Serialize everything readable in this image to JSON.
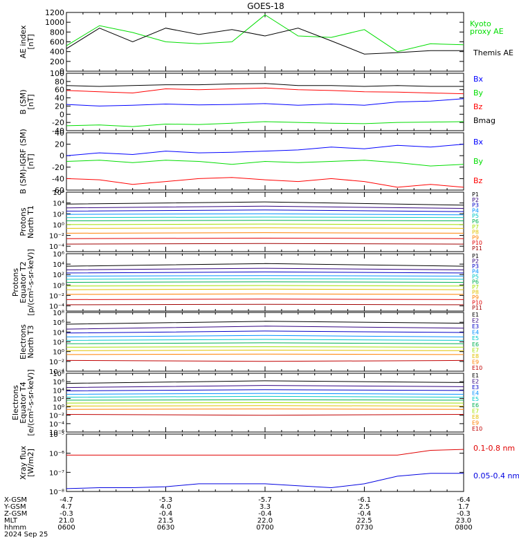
{
  "title": "GOES-18",
  "date_label": "2024 Sep 25",
  "footer": {
    "row_labels": [
      "X-GSM",
      "Y-GSM",
      "Z-GSM",
      "MLT",
      "hhmm"
    ],
    "columns": [
      [
        "-4.7",
        "4.7",
        "-0.3",
        "21.0",
        "0600"
      ],
      [
        "-5.3",
        "4.0",
        "-0.4",
        "21.5",
        "0630"
      ],
      [
        "-5.7",
        "3.3",
        "-0.4",
        "22.0",
        "0700"
      ],
      [
        "-6.1",
        "2.5",
        "-0.4",
        "22.5",
        "0730"
      ],
      [
        "-6.4",
        "1.7",
        "-0.3",
        "23.0",
        "0800"
      ]
    ]
  },
  "chart_data": [
    {
      "type": "line",
      "ylabel": [
        "AE index",
        "[nT]"
      ],
      "ylim": [
        0,
        1200
      ],
      "yticks": [
        "0",
        "200",
        "400",
        "600",
        "800",
        "1000",
        "1200"
      ],
      "x": [
        "0600",
        "0610",
        "0620",
        "0630",
        "0640",
        "0650",
        "0700",
        "0710",
        "0720",
        "0730",
        "0740",
        "0750",
        "0800"
      ],
      "series": [
        {
          "name": "Kyoto proxy AE",
          "color": "#00dd00",
          "legend_lines": [
            "Kyoto",
            "proxy AE"
          ],
          "values": [
            520,
            930,
            790,
            600,
            560,
            600,
            1150,
            720,
            690,
            850,
            400,
            560,
            540
          ]
        },
        {
          "name": "Themis AE",
          "color": "#000000",
          "values": [
            460,
            880,
            600,
            880,
            750,
            850,
            720,
            880,
            620,
            350,
            380,
            420,
            420
          ]
        }
      ]
    },
    {
      "type": "line",
      "ylabel": [
        "B (SM)",
        "[nT]"
      ],
      "ylim": [
        -40,
        100
      ],
      "yticks": [
        "-40",
        "-20",
        "0",
        "20",
        "40",
        "60",
        "80",
        "100"
      ],
      "x": [
        "0600",
        "0610",
        "0620",
        "0630",
        "0640",
        "0650",
        "0700",
        "0710",
        "0720",
        "0730",
        "0740",
        "0750",
        "0800"
      ],
      "series": [
        {
          "name": "Bx",
          "color": "#0000ff",
          "values": [
            24,
            20,
            22,
            25,
            23,
            24,
            26,
            22,
            25,
            22,
            30,
            32,
            38
          ]
        },
        {
          "name": "By",
          "color": "#00dd00",
          "values": [
            -28,
            -26,
            -30,
            -24,
            -25,
            -22,
            -18,
            -20,
            -22,
            -23,
            -20,
            -19,
            -18
          ]
        },
        {
          "name": "Bz",
          "color": "#ff0000",
          "values": [
            58,
            55,
            52,
            62,
            60,
            62,
            64,
            60,
            58,
            55,
            54,
            52,
            50
          ]
        },
        {
          "name": "Bmag",
          "color": "#000000",
          "values": [
            70,
            68,
            70,
            72,
            72,
            74,
            75,
            70,
            70,
            68,
            70,
            68,
            68
          ]
        }
      ]
    },
    {
      "type": "line",
      "ylabel": [
        "B (SM)-IGRF (SM)",
        "[nT]"
      ],
      "ylim": [
        -60,
        40
      ],
      "yticks": [
        "-60",
        "-40",
        "-20",
        "0",
        "20",
        "40"
      ],
      "x": [
        "0600",
        "0610",
        "0620",
        "0630",
        "0640",
        "0650",
        "0700",
        "0710",
        "0720",
        "0730",
        "0740",
        "0750",
        "0800"
      ],
      "series": [
        {
          "name": "Bx",
          "color": "#0000ff",
          "values": [
            0,
            5,
            2,
            8,
            5,
            6,
            8,
            10,
            15,
            12,
            18,
            15,
            20
          ]
        },
        {
          "name": "By",
          "color": "#00dd00",
          "values": [
            -10,
            -8,
            -12,
            -8,
            -10,
            -15,
            -10,
            -12,
            -10,
            -8,
            -12,
            -18,
            -15
          ]
        },
        {
          "name": "Bz",
          "color": "#ff0000",
          "values": [
            -40,
            -42,
            -50,
            -45,
            -40,
            -38,
            -42,
            -45,
            -40,
            -45,
            -55,
            -50,
            -55
          ]
        }
      ]
    },
    {
      "type": "line",
      "ylog": true,
      "ylabel": [
        "Protons",
        "North T1"
      ],
      "ylim_exp": [
        -5,
        6
      ],
      "tick_exps": [
        -4,
        -2,
        0,
        2,
        4,
        6
      ],
      "x": [
        "0600",
        "0700",
        "0800"
      ],
      "series": [
        {
          "name": "P1",
          "color": "#000000",
          "log10_values": [
            3.8,
            4.2,
            3.6
          ]
        },
        {
          "name": "P2",
          "color": "#300080",
          "log10_values": [
            3.1,
            3.4,
            3.0
          ]
        },
        {
          "name": "P3",
          "color": "#0000c8",
          "log10_values": [
            2.5,
            2.7,
            2.4
          ]
        },
        {
          "name": "P4",
          "color": "#0090ff",
          "log10_values": [
            1.9,
            2.0,
            1.8
          ]
        },
        {
          "name": "P5",
          "color": "#00c8c8",
          "log10_values": [
            1.3,
            1.4,
            1.3
          ]
        },
        {
          "name": "P6",
          "color": "#00b050",
          "log10_values": [
            0.7,
            0.8,
            0.7
          ]
        },
        {
          "name": "P7",
          "color": "#a0e000",
          "log10_values": [
            0.0,
            0.1,
            0.0
          ]
        },
        {
          "name": "P8",
          "color": "#e0c000",
          "log10_values": [
            -0.7,
            -0.6,
            -0.7
          ]
        },
        {
          "name": "P9",
          "color": "#ff8000",
          "log10_values": [
            -1.6,
            -1.5,
            -1.6
          ]
        },
        {
          "name": "P10",
          "color": "#e00000",
          "log10_values": [
            -2.6,
            -2.5,
            -2.6
          ]
        },
        {
          "name": "P11",
          "color": "#a00000",
          "log10_values": [
            -3.6,
            -3.5,
            -3.6
          ]
        }
      ]
    },
    {
      "type": "line",
      "ylog": true,
      "ylabel": [
        "Protons",
        "Equator T2",
        "[p/(cm²-s-sr-keV)]"
      ],
      "ylim_exp": [
        -5,
        6
      ],
      "tick_exps": [
        -4,
        -2,
        0,
        2,
        4,
        6
      ],
      "x": [
        "0600",
        "0700",
        "0800"
      ],
      "series": [
        {
          "name": "P1",
          "color": "#000000",
          "log10_values": [
            3.6,
            4.1,
            3.6
          ]
        },
        {
          "name": "P2",
          "color": "#300080",
          "log10_values": [
            2.9,
            3.2,
            2.9
          ]
        },
        {
          "name": "P3",
          "color": "#0000c8",
          "log10_values": [
            2.3,
            2.5,
            2.3
          ]
        },
        {
          "name": "P4",
          "color": "#0090ff",
          "log10_values": [
            1.7,
            1.8,
            1.7
          ]
        },
        {
          "name": "P5",
          "color": "#00c8c8",
          "log10_values": [
            1.1,
            1.2,
            1.1
          ]
        },
        {
          "name": "P6",
          "color": "#00b050",
          "log10_values": [
            0.5,
            0.6,
            0.5
          ]
        },
        {
          "name": "P7",
          "color": "#a0e000",
          "log10_values": [
            -0.2,
            -0.1,
            -0.2
          ]
        },
        {
          "name": "P8",
          "color": "#e0c000",
          "log10_values": [
            -0.9,
            -0.8,
            -0.9
          ]
        },
        {
          "name": "P9",
          "color": "#ff8000",
          "log10_values": [
            -1.8,
            -1.7,
            -1.8
          ]
        },
        {
          "name": "P10",
          "color": "#e00000",
          "log10_values": [
            -2.8,
            -2.7,
            -2.8
          ]
        },
        {
          "name": "P11",
          "color": "#a00000",
          "log10_values": [
            -3.8,
            -3.7,
            -3.8
          ]
        }
      ]
    },
    {
      "type": "line",
      "ylog": true,
      "ylabel": [
        "Electrons",
        "North T3"
      ],
      "ylim_exp": [
        -4,
        8
      ],
      "tick_exps": [
        -4,
        -2,
        0,
        2,
        4,
        6,
        8
      ],
      "x": [
        "0600",
        "0700",
        "0800"
      ],
      "series": [
        {
          "name": "E1",
          "color": "#000000",
          "log10_values": [
            5.6,
            6.2,
            5.8
          ]
        },
        {
          "name": "E2",
          "color": "#300080",
          "log10_values": [
            4.6,
            5.2,
            4.8
          ]
        },
        {
          "name": "E3",
          "color": "#0000c8",
          "log10_values": [
            3.8,
            4.2,
            3.9
          ]
        },
        {
          "name": "E4",
          "color": "#0090ff",
          "log10_values": [
            3.0,
            3.3,
            3.0
          ]
        },
        {
          "name": "E5",
          "color": "#00c8c8",
          "log10_values": [
            2.3,
            2.5,
            2.3
          ]
        },
        {
          "name": "E6",
          "color": "#00b050",
          "log10_values": [
            1.6,
            1.8,
            1.6
          ]
        },
        {
          "name": "E7",
          "color": "#a0e000",
          "log10_values": [
            0.9,
            1.0,
            0.9
          ]
        },
        {
          "name": "E8",
          "color": "#e0c000",
          "log10_values": [
            0.2,
            0.3,
            0.2
          ]
        },
        {
          "name": "E9",
          "color": "#ff8000",
          "log10_values": [
            -0.6,
            -0.5,
            -0.6
          ]
        },
        {
          "name": "E10",
          "color": "#c00000",
          "log10_values": [
            -1.8,
            -2.0,
            -1.8
          ]
        }
      ]
    },
    {
      "type": "line",
      "ylog": true,
      "ylabel": [
        "Electrons",
        "Equator T4",
        "[e/(cm²-s-sr-keV)]"
      ],
      "ylim_exp": [
        -6,
        8
      ],
      "tick_exps": [
        -6,
        -4,
        -2,
        0,
        2,
        4,
        6,
        8
      ],
      "x": [
        "0600",
        "0700",
        "0800"
      ],
      "series": [
        {
          "name": "E1",
          "color": "#000000",
          "log10_values": [
            5.6,
            6.2,
            5.8
          ]
        },
        {
          "name": "E2",
          "color": "#300080",
          "log10_values": [
            4.6,
            5.1,
            4.8
          ]
        },
        {
          "name": "E3",
          "color": "#0000c8",
          "log10_values": [
            3.8,
            4.1,
            3.9
          ]
        },
        {
          "name": "E4",
          "color": "#0090ff",
          "log10_values": [
            3.0,
            3.2,
            3.0
          ]
        },
        {
          "name": "E5",
          "color": "#00c8c8",
          "log10_values": [
            2.3,
            2.5,
            2.3
          ]
        },
        {
          "name": "E6",
          "color": "#00b050",
          "log10_values": [
            1.6,
            1.7,
            1.6
          ]
        },
        {
          "name": "E7",
          "color": "#a0e000",
          "log10_values": [
            0.9,
            1.0,
            0.9
          ]
        },
        {
          "name": "E8",
          "color": "#e0c000",
          "log10_values": [
            0.2,
            0.3,
            0.2
          ]
        },
        {
          "name": "E9",
          "color": "#ff8000",
          "log10_values": [
            -0.6,
            -0.5,
            -0.6
          ]
        },
        {
          "name": "E10",
          "color": "#c00000",
          "log10_values": [
            -1.8,
            -2.0,
            -1.8
          ]
        }
      ]
    },
    {
      "type": "line",
      "ylog": true,
      "ylabel": [
        "Xray flux",
        "[W/m2]"
      ],
      "ylim_exp": [
        -8,
        -5
      ],
      "tick_exps": [
        -8,
        -7,
        -6,
        -5
      ],
      "x": [
        "0600",
        "0610",
        "0620",
        "0630",
        "0640",
        "0650",
        "0700",
        "0710",
        "0720",
        "0730",
        "0740",
        "0750",
        "0800"
      ],
      "series": [
        {
          "name": "0.1-0.8 nm",
          "color": "#e00000",
          "log10_values": [
            -6.1,
            -6.1,
            -6.1,
            -6.1,
            -6.1,
            -6.1,
            -6.1,
            -6.1,
            -6.1,
            -6.1,
            -6.1,
            -5.85,
            -5.8
          ]
        },
        {
          "name": "0.05-0.4 nm",
          "color": "#0000e0",
          "log10_values": [
            -7.85,
            -7.8,
            -7.8,
            -7.75,
            -7.6,
            -7.6,
            -7.6,
            -7.7,
            -7.8,
            -7.6,
            -7.2,
            -7.05,
            -7.05
          ]
        }
      ]
    }
  ]
}
